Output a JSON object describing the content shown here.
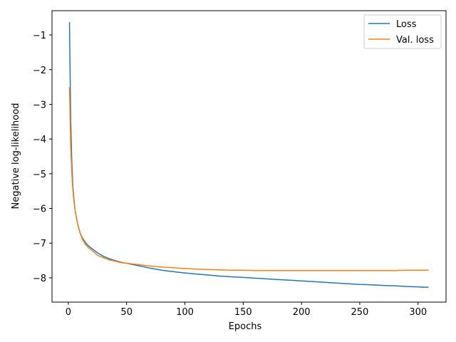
{
  "chart_data": {
    "type": "line",
    "title": "",
    "xlabel": "Epochs",
    "ylabel": "Negative log-likelihood",
    "xlim": [
      -14,
      324
    ],
    "ylim": [
      -8.7,
      -0.3
    ],
    "x_ticks": [
      0,
      50,
      100,
      150,
      200,
      250,
      300
    ],
    "x_tick_labels": [
      "0",
      "50",
      "100",
      "150",
      "200",
      "250",
      "300"
    ],
    "y_ticks": [
      -8,
      -7,
      -6,
      -5,
      -4,
      -3,
      -2,
      -1
    ],
    "y_tick_labels": [
      "−8",
      "−7",
      "−6",
      "−5",
      "−4",
      "−3",
      "−2",
      "−1"
    ],
    "grid": false,
    "legend_position": "top-right",
    "series": [
      {
        "name": "Loss",
        "color": "#1f77b4",
        "x": [
          1,
          2,
          3,
          4,
          5,
          6,
          8,
          10,
          12,
          15,
          18,
          20,
          25,
          30,
          35,
          40,
          45,
          50,
          60,
          70,
          80,
          90,
          100,
          110,
          120,
          130,
          140,
          150,
          160,
          170,
          180,
          190,
          200,
          210,
          220,
          230,
          240,
          250,
          260,
          270,
          280,
          290,
          300,
          305,
          309
        ],
        "values": [
          -0.63,
          -3.4,
          -4.7,
          -5.4,
          -5.8,
          -6.1,
          -6.45,
          -6.7,
          -6.85,
          -7.0,
          -7.1,
          -7.15,
          -7.28,
          -7.38,
          -7.45,
          -7.5,
          -7.55,
          -7.58,
          -7.65,
          -7.72,
          -7.78,
          -7.82,
          -7.86,
          -7.89,
          -7.92,
          -7.95,
          -7.97,
          -7.99,
          -8.01,
          -8.03,
          -8.05,
          -8.07,
          -8.09,
          -8.11,
          -8.13,
          -8.15,
          -8.17,
          -8.19,
          -8.2,
          -8.22,
          -8.23,
          -8.25,
          -8.26,
          -8.27,
          -8.27
        ]
      },
      {
        "name": "Val. loss",
        "color": "#ff7f0e",
        "x": [
          1,
          2,
          3,
          4,
          5,
          6,
          8,
          10,
          12,
          15,
          18,
          20,
          25,
          30,
          35,
          40,
          45,
          50,
          60,
          70,
          80,
          90,
          100,
          110,
          120,
          130,
          140,
          150,
          160,
          170,
          180,
          190,
          200,
          210,
          220,
          230,
          240,
          250,
          260,
          270,
          280,
          290,
          300,
          305,
          309
        ],
        "values": [
          -2.5,
          -4.2,
          -5.0,
          -5.5,
          -5.85,
          -6.1,
          -6.45,
          -6.7,
          -6.88,
          -7.05,
          -7.15,
          -7.2,
          -7.35,
          -7.42,
          -7.48,
          -7.52,
          -7.56,
          -7.58,
          -7.62,
          -7.66,
          -7.69,
          -7.71,
          -7.73,
          -7.75,
          -7.76,
          -7.77,
          -7.78,
          -7.78,
          -7.79,
          -7.79,
          -7.79,
          -7.79,
          -7.79,
          -7.79,
          -7.79,
          -7.79,
          -7.79,
          -7.79,
          -7.79,
          -7.79,
          -7.79,
          -7.78,
          -7.78,
          -7.78,
          -7.78
        ]
      }
    ]
  }
}
